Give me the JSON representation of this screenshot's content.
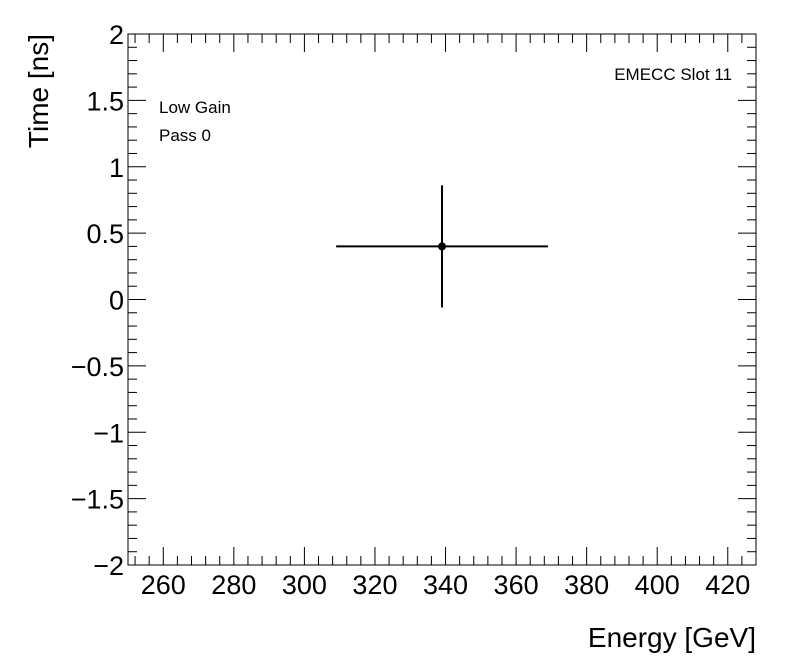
{
  "chart_data": {
    "type": "scatter",
    "title": "",
    "xlabel": "Energy [GeV]",
    "ylabel": "Time [ns]",
    "xlim": [
      250,
      428
    ],
    "ylim": [
      -2,
      2
    ],
    "x_major_ticks": [
      260,
      280,
      300,
      320,
      340,
      360,
      380,
      400,
      420
    ],
    "x_tick_labels": [
      "260",
      "280",
      "300",
      "320",
      "340",
      "360",
      "380",
      "400",
      "420"
    ],
    "y_major_ticks": [
      -2,
      -1.5,
      -1,
      -0.5,
      0,
      0.5,
      1,
      1.5,
      2
    ],
    "y_tick_labels": [
      "−2",
      "−1.5",
      "−1",
      "−0.5",
      "0",
      "0.5",
      "1",
      "1.5",
      "2"
    ],
    "grid": false,
    "annotations": {
      "top_right": "EMECC Slot 11",
      "top_left_line1": "Low Gain",
      "top_left_line2": "Pass 0"
    },
    "series": [
      {
        "points": [
          {
            "x": 339,
            "y": 0.4,
            "x_err_low": 30,
            "x_err_high": 30,
            "y_err_low": 0.46,
            "y_err_high": 0.46
          }
        ],
        "color": "#000000"
      }
    ]
  }
}
